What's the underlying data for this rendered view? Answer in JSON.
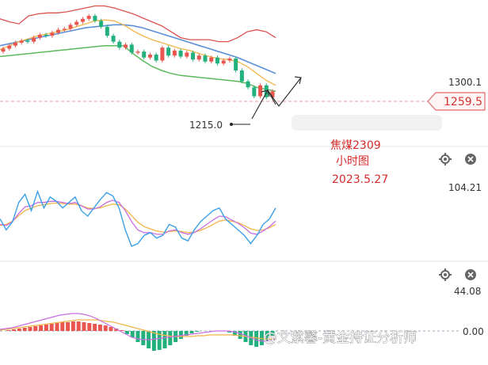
{
  "annotation": {
    "symbol": "焦煤2309",
    "timeframe": "小时图",
    "date": "2023.5.27"
  },
  "watermark": "@文紫馨-黄金持证分析师",
  "icons": {
    "settings": "gear-icon",
    "close": "close-icon"
  },
  "colors": {
    "candle_up": "#e8564f",
    "candle_down": "#22b07d",
    "ma_blue": "#5b8fd6",
    "ma_orange": "#f2b54a",
    "ma_green": "#5cb85c",
    "band_upper": "#d9534f",
    "price_tag": "#e06a6a",
    "osc_blue": "#3aa0e8",
    "osc_purple": "#c86ee0"
  },
  "chart_data": [
    {
      "panel": "price",
      "type": "candlestick",
      "y_tick_labels": [
        "1300.1"
      ],
      "current_price_label": "1259.5",
      "low_marker_label": "1215.0",
      "ylim": [
        1208,
        1354
      ],
      "ma_blue": [
        1308,
        1310,
        1312,
        1314,
        1316,
        1318,
        1320,
        1322,
        1324,
        1326,
        1327,
        1328,
        1329,
        1329,
        1328,
        1326,
        1323,
        1320,
        1317,
        1314,
        1311,
        1308,
        1305,
        1302,
        1299,
        1296,
        1292,
        1288,
        1284,
        1280
      ],
      "ma_orange": [
        1304,
        1308,
        1312,
        1315,
        1318,
        1320,
        1322,
        1324,
        1327,
        1330,
        1333,
        1334,
        1333,
        1329,
        1323,
        1318,
        1314,
        1311,
        1308,
        1305,
        1303,
        1300,
        1297,
        1295,
        1294,
        1292,
        1287,
        1280,
        1273,
        1268
      ],
      "ma_green": [
        1297,
        1298,
        1299,
        1300,
        1301,
        1302,
        1303,
        1304,
        1305,
        1306,
        1307,
        1308,
        1308,
        1308,
        1300,
        1293,
        1287,
        1283,
        1280,
        1278,
        1277,
        1276,
        1275,
        1274,
        1273,
        1272,
        1270,
        1266,
        1264,
        1262
      ],
      "band_upper": [
        1335,
        1332,
        1330,
        1338,
        1340,
        1341,
        1341,
        1342,
        1344,
        1346,
        1348,
        1348,
        1346,
        1343,
        1340,
        1336,
        1332,
        1328,
        1322,
        1316,
        1314,
        1314,
        1314,
        1312,
        1312,
        1316,
        1322,
        1324,
        1322,
        1316
      ],
      "candles_close": [
        1305,
        1308,
        1311,
        1313,
        1312,
        1316,
        1319,
        1318,
        1321,
        1324,
        1325,
        1329,
        1332,
        1335,
        1338,
        1333,
        1327,
        1318,
        1312,
        1306,
        1309,
        1301,
        1302,
        1296,
        1299,
        1293,
        1306,
        1298,
        1303,
        1297,
        1301,
        1294,
        1298,
        1292,
        1296,
        1290,
        1293,
        1295,
        1283,
        1272,
        1266,
        1257,
        1268,
        1256,
        1262
      ]
    },
    {
      "panel": "oscillator",
      "type": "line",
      "y_tick_labels": [
        "104.21"
      ],
      "ylim": [
        -30,
        104.21
      ],
      "fast": [
        40,
        20,
        35,
        70,
        85,
        55,
        90,
        60,
        80,
        72,
        60,
        70,
        80,
        55,
        45,
        60,
        75,
        88,
        82,
        60,
        20,
        -10,
        -5,
        10,
        15,
        5,
        10,
        30,
        25,
        5,
        0,
        20,
        35,
        45,
        55,
        60,
        40,
        30,
        20,
        10,
        -5,
        10,
        30,
        40,
        60
      ],
      "slow": [
        30,
        28,
        35,
        50,
        62,
        64,
        70,
        70,
        72,
        72,
        70,
        68,
        70,
        64,
        58,
        58,
        62,
        70,
        74,
        70,
        55,
        35,
        20,
        15,
        15,
        12,
        12,
        18,
        20,
        15,
        12,
        15,
        22,
        30,
        38,
        45,
        44,
        38,
        32,
        24,
        14,
        12,
        18,
        26,
        36
      ],
      "signal": [
        28,
        30,
        36,
        46,
        55,
        60,
        64,
        66,
        68,
        69,
        68,
        67,
        67,
        64,
        60,
        59,
        60,
        64,
        67,
        66,
        58,
        46,
        34,
        26,
        22,
        18,
        16,
        17,
        18,
        17,
        15,
        16,
        19,
        24,
        30,
        36,
        38,
        36,
        33,
        28,
        22,
        19,
        20,
        24,
        30
      ]
    },
    {
      "panel": "macd",
      "type": "bar",
      "y_tick_labels": [
        "44.08",
        "0.00"
      ],
      "ylim": [
        -40,
        44.08
      ],
      "histogram": [
        0,
        1,
        2,
        3,
        4,
        5,
        6,
        7,
        8,
        9,
        10,
        11,
        11,
        12,
        12,
        11,
        10,
        9,
        8,
        7,
        5,
        3,
        1,
        -4,
        -8,
        -14,
        -18,
        -22,
        -25,
        -24,
        -22,
        -18,
        -14,
        -10,
        -6,
        -3,
        -1,
        0,
        0,
        0,
        0,
        0,
        -2,
        -6,
        -10,
        -14,
        -18,
        -20,
        -18,
        -12,
        -6
      ],
      "line_a": [
        2,
        3,
        4,
        6,
        8,
        10,
        12,
        14,
        16,
        18,
        20,
        21,
        22,
        22,
        21,
        19,
        16,
        12,
        8,
        4,
        0,
        -4,
        -8,
        -10,
        -11,
        -11,
        -10,
        -9,
        -8,
        -7,
        -6,
        -5,
        -4,
        -3,
        -2,
        -1,
        0,
        0,
        0,
        -1,
        -3,
        -6,
        -9,
        -12,
        -13,
        -12,
        -10
      ],
      "line_b": [
        1,
        2,
        3,
        4,
        5,
        6,
        7,
        8,
        9,
        10,
        11,
        12,
        13,
        14,
        14,
        14,
        14,
        13,
        12,
        11,
        9,
        7,
        5,
        3,
        1,
        -1,
        -3,
        -5,
        -6,
        -7,
        -7,
        -7,
        -7,
        -6,
        -6,
        -5,
        -5,
        -5,
        -5,
        -5,
        -6,
        -7,
        -8,
        -9,
        -10,
        -10,
        -10
      ]
    }
  ]
}
